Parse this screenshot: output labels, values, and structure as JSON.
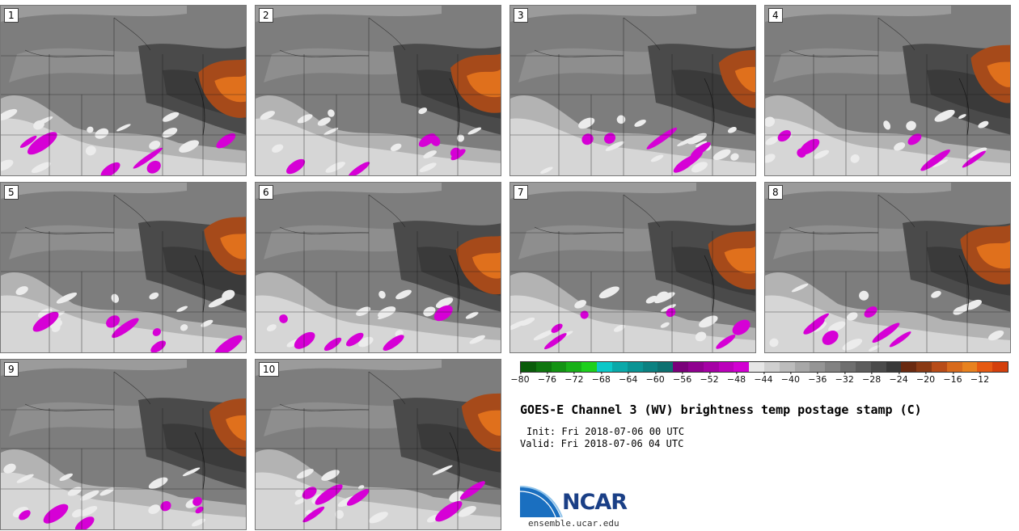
{
  "panels": [
    {
      "label": "1"
    },
    {
      "label": "2"
    },
    {
      "label": "3"
    },
    {
      "label": "4"
    },
    {
      "label": "5"
    },
    {
      "label": "6"
    },
    {
      "label": "7"
    },
    {
      "label": "8"
    },
    {
      "label": "9"
    },
    {
      "label": "10"
    }
  ],
  "colorbar": {
    "colors": [
      "#0a5c0a",
      "#0f760f",
      "#139313",
      "#18b018",
      "#1dd01d",
      "#0bc8c8",
      "#0aa9a9",
      "#0a9494",
      "#0b8181",
      "#0d7070",
      "#7a007a",
      "#8f008f",
      "#a500a5",
      "#bb00bb",
      "#d200d2",
      "#e6e6e6",
      "#d0d0d0",
      "#bcbcbc",
      "#a8a8a8",
      "#959595",
      "#828282",
      "#6f6f6f",
      "#5d5d5d",
      "#4b4b4b",
      "#393939",
      "#6a2a10",
      "#8a3a14",
      "#b84c18",
      "#d86a1c",
      "#e8821f",
      "#e65a12",
      "#d4400c"
    ],
    "tick_labels": [
      "-80",
      "-76",
      "-72",
      "-68",
      "-64",
      "-60",
      "-56",
      "-52",
      "-48",
      "-44",
      "-40",
      "-36",
      "-32",
      "-28",
      "-24",
      "-20",
      "-16",
      "-12"
    ],
    "range": [
      -80,
      -12
    ]
  },
  "title": "GOES-E Channel 3 (WV) brightness temp postage stamp (C)",
  "init": "Init: Fri 2018-07-06 00 UTC",
  "valid": "Valid: Fri 2018-07-06 04 UTC",
  "logo_text": "NCAR",
  "logo_url": "ensemble.ucar.edu"
}
